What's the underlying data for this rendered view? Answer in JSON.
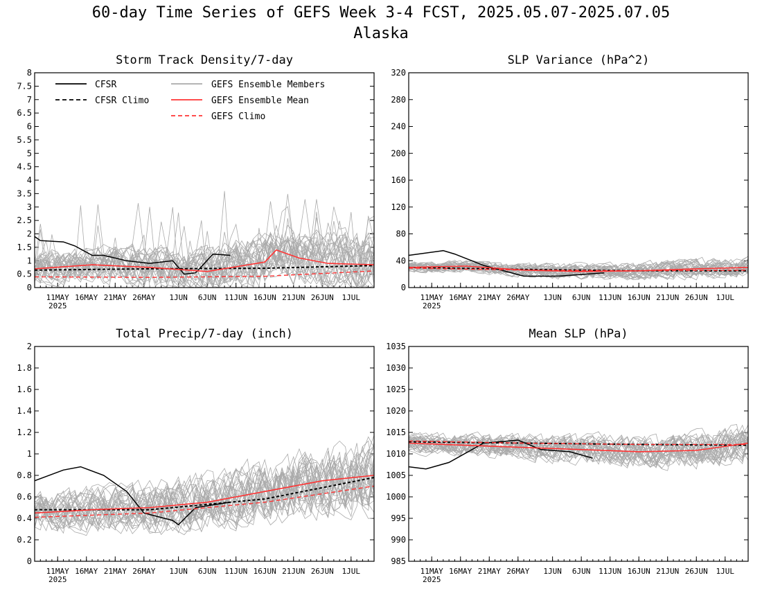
{
  "figure": {
    "title_line1": "60-day Time Series of GEFS Week 3-4 FCST, 2025.05.07-2025.07.05",
    "title_line2": "Alaska"
  },
  "colors": {
    "cfsr": "#000000",
    "ensemble_members": "#aaaaaa",
    "ensemble_mean": "#ff3333",
    "gefs_climo": "#ff3333"
  },
  "legend": {
    "cfsr": "CFSR",
    "cfsr_climo": "CFSR Climo",
    "members": "GEFS Ensemble Members",
    "mean": "GEFS Ensemble Mean",
    "gefs_climo": "GEFS Climo"
  },
  "x_axis": {
    "tick_labels": [
      "11MAY",
      "16MAY",
      "21MAY",
      "26MAY",
      "1JUN",
      "6JUN",
      "11JUN",
      "16JUN",
      "21JUN",
      "26JUN",
      "1JUL"
    ],
    "tick_days": [
      4,
      9,
      14,
      19,
      25,
      30,
      35,
      40,
      45,
      50,
      55
    ],
    "year_label": "2025",
    "start_date": "2025-05-07",
    "end_date": "2025-07-05"
  },
  "chart_data": [
    {
      "type": "line",
      "title": "Storm Track Density/7-day",
      "ylim": [
        0,
        8
      ],
      "yticks": [
        "0",
        "0.5",
        "1",
        "1.5",
        "2",
        "2.5",
        "3",
        "3.5",
        "4",
        "4.5",
        "5",
        "5.5",
        "6",
        "6.5",
        "7",
        "7.5",
        "8"
      ],
      "series": [
        {
          "name": "CFSR",
          "dates": [
            "05-07",
            "05-08",
            "05-12",
            "05-14",
            "05-17",
            "05-19",
            "05-23",
            "05-27",
            "05-31",
            "06-02",
            "06-04",
            "06-07",
            "06-10"
          ],
          "values": [
            1.9,
            1.75,
            1.7,
            1.55,
            1.2,
            1.2,
            1.0,
            0.9,
            1.0,
            0.5,
            0.55,
            1.25,
            1.2
          ]
        },
        {
          "name": "CFSR Climo",
          "dates": [
            "05-07",
            "05-27",
            "06-16",
            "07-05"
          ],
          "values": [
            0.65,
            0.7,
            0.72,
            0.82
          ]
        },
        {
          "name": "GEFS Ensemble Mean",
          "dates": [
            "05-07",
            "05-17",
            "05-27",
            "06-06",
            "06-16",
            "06-18",
            "06-22",
            "06-27",
            "07-05"
          ],
          "values": [
            0.7,
            0.85,
            0.75,
            0.6,
            0.95,
            1.4,
            1.1,
            0.9,
            0.85
          ]
        },
        {
          "name": "GEFS Climo",
          "dates": [
            "05-07",
            "05-27",
            "06-16",
            "07-05"
          ],
          "values": [
            0.4,
            0.38,
            0.42,
            0.62
          ]
        }
      ]
    },
    {
      "type": "line",
      "title": "SLP Variance (hPa^2)",
      "ylim": [
        0,
        320
      ],
      "yticks": [
        "0",
        "40",
        "80",
        "120",
        "160",
        "200",
        "240",
        "280",
        "320"
      ],
      "series": [
        {
          "name": "CFSR",
          "dates": [
            "05-07",
            "05-13",
            "05-15",
            "05-20",
            "05-27",
            "06-02",
            "06-10"
          ],
          "values": [
            48,
            55,
            50,
            33,
            17,
            17,
            22
          ]
        },
        {
          "name": "CFSR Climo",
          "dates": [
            "05-07",
            "05-27",
            "06-16",
            "07-05"
          ],
          "values": [
            30,
            27,
            25,
            25
          ]
        },
        {
          "name": "GEFS Ensemble Mean",
          "dates": [
            "05-07",
            "05-17",
            "05-27",
            "06-06",
            "06-16",
            "06-26",
            "07-05"
          ],
          "values": [
            30,
            32,
            26,
            24,
            25,
            28,
            30
          ]
        },
        {
          "name": "GEFS Climo",
          "dates": [
            "05-07",
            "05-27",
            "06-16",
            "07-05"
          ],
          "values": [
            29,
            26,
            25,
            26
          ]
        }
      ]
    },
    {
      "type": "line",
      "title": "Total Precip/7-day (inch)",
      "ylim": [
        0,
        2
      ],
      "yticks": [
        "0",
        "0.2",
        "0.4",
        "0.6",
        "0.8",
        "1",
        "1.2",
        "1.4",
        "1.6",
        "1.8",
        "2"
      ],
      "series": [
        {
          "name": "CFSR",
          "dates": [
            "05-07",
            "05-12",
            "05-15",
            "05-19",
            "05-23",
            "05-26",
            "05-31",
            "06-01",
            "06-04",
            "06-10"
          ],
          "values": [
            0.75,
            0.85,
            0.88,
            0.8,
            0.65,
            0.45,
            0.38,
            0.34,
            0.5,
            0.55
          ]
        },
        {
          "name": "CFSR Climo",
          "dates": [
            "05-07",
            "05-27",
            "06-16",
            "07-05"
          ],
          "values": [
            0.48,
            0.48,
            0.58,
            0.78
          ]
        },
        {
          "name": "GEFS Ensemble Mean",
          "dates": [
            "05-07",
            "05-17",
            "05-27",
            "06-06",
            "06-16",
            "06-26",
            "07-05"
          ],
          "values": [
            0.45,
            0.48,
            0.5,
            0.55,
            0.65,
            0.75,
            0.8
          ]
        },
        {
          "name": "GEFS Climo",
          "dates": [
            "05-07",
            "05-27",
            "06-16",
            "07-05"
          ],
          "values": [
            0.41,
            0.45,
            0.55,
            0.7
          ]
        }
      ]
    },
    {
      "type": "line",
      "title": "Mean SLP (hPa)",
      "ylim": [
        985,
        1035
      ],
      "yticks": [
        "985",
        "990",
        "995",
        "1000",
        "1005",
        "1010",
        "1015",
        "1020",
        "1025",
        "1030",
        "1035"
      ],
      "series": [
        {
          "name": "CFSR",
          "dates": [
            "05-07",
            "05-10",
            "05-14",
            "05-20",
            "05-26",
            "05-30",
            "06-04",
            "06-08"
          ],
          "values": [
            1007,
            1006.5,
            1008,
            1012.5,
            1013.2,
            1011,
            1010.5,
            1009
          ]
        },
        {
          "name": "CFSR Climo",
          "dates": [
            "05-07",
            "05-27",
            "06-16",
            "07-05"
          ],
          "values": [
            1012.8,
            1012.5,
            1012.2,
            1012
          ]
        },
        {
          "name": "GEFS Ensemble Mean",
          "dates": [
            "05-07",
            "05-17",
            "05-27",
            "06-06",
            "06-16",
            "06-26",
            "07-05"
          ],
          "values": [
            1012.5,
            1012,
            1011.5,
            1011,
            1010.5,
            1010.8,
            1012.5
          ]
        },
        {
          "name": "GEFS Climo",
          "dates": [
            "05-07",
            "05-27",
            "06-16",
            "07-05"
          ],
          "values": [
            1013,
            1012.5,
            1012.2,
            1012.2
          ]
        }
      ]
    }
  ]
}
